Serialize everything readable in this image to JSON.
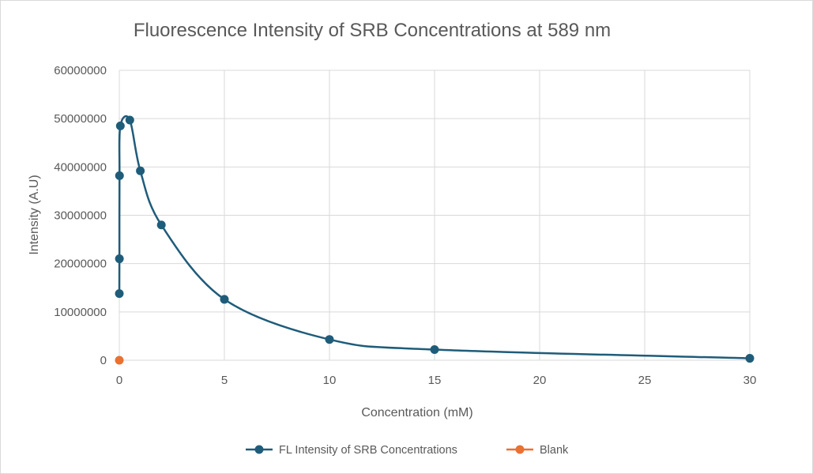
{
  "chart_data": {
    "type": "scatter",
    "title": "Fluorescence Intensity of SRB Concentrations at 589 nm",
    "xlabel": "Concentration (mM)",
    "ylabel": "Intensity (A.U)",
    "xlim": [
      0,
      30
    ],
    "ylim": [
      0,
      60000000
    ],
    "xticks": [
      0,
      5,
      10,
      15,
      20,
      25,
      30
    ],
    "yticks": [
      0,
      10000000,
      20000000,
      30000000,
      40000000,
      50000000,
      60000000
    ],
    "xtick_labels": [
      "0",
      "5",
      "10",
      "15",
      "20",
      "25",
      "30"
    ],
    "ytick_labels": [
      "0",
      "10000000",
      "20000000",
      "30000000",
      "40000000",
      "50000000",
      "60000000"
    ],
    "grid": true,
    "smooth_lines": true,
    "legend_position": "bottom",
    "series": [
      {
        "name": "FL Intensity of SRB Concentrations",
        "color": "#1f5c7a",
        "marker": "circle",
        "x": [
          0.001,
          0.005,
          0.01,
          0.05,
          0.5,
          1,
          2,
          5,
          10,
          15,
          30
        ],
        "y": [
          13800000,
          21000000,
          38200000,
          48500000,
          49700000,
          39200000,
          28000000,
          12600000,
          4300000,
          2200000,
          400000
        ]
      },
      {
        "name": "Blank",
        "color": "#e97132",
        "marker": "circle",
        "x": [
          0
        ],
        "y": [
          0
        ]
      }
    ]
  }
}
